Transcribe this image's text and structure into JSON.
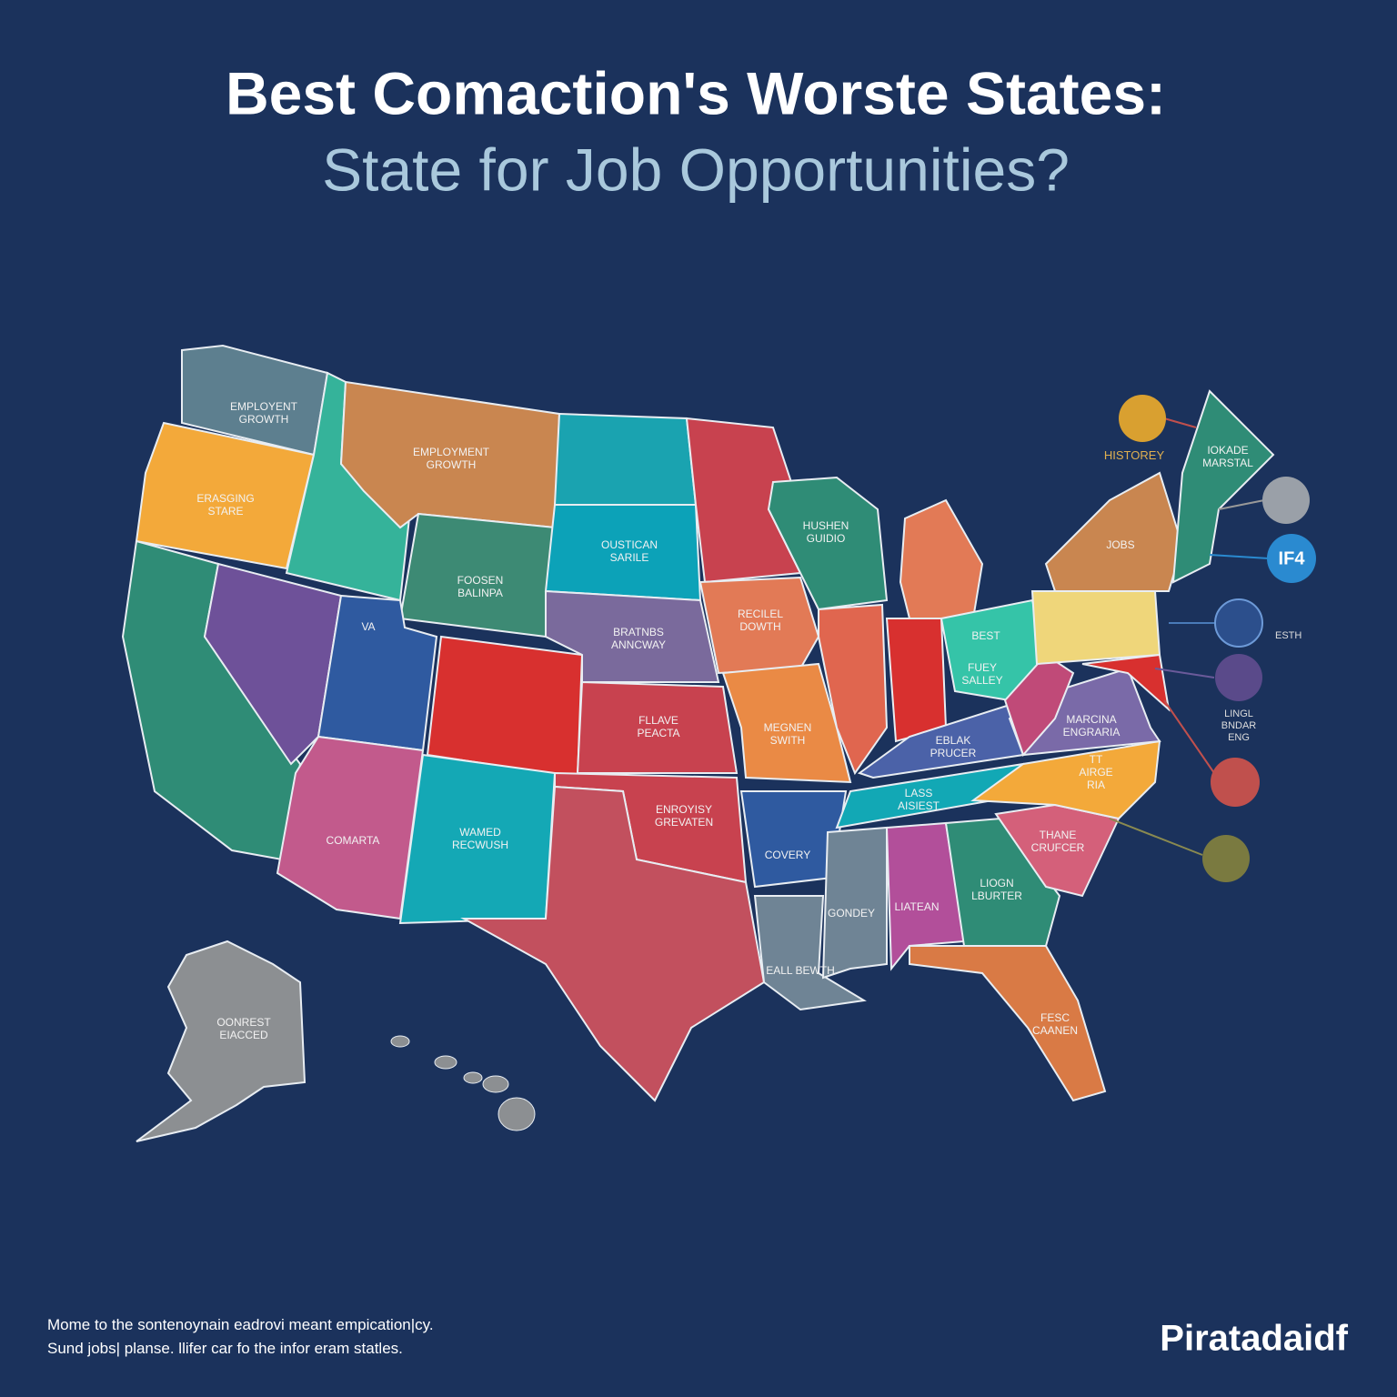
{
  "header": {
    "title": "Best Comaction's Worste States:",
    "subtitle": "State for Job Opportunities?"
  },
  "regions": [
    {
      "label_lines": [
        "EMPLOYENT",
        "GROWTH"
      ]
    },
    {
      "label_lines": [
        "ERASGING",
        "STARE"
      ]
    },
    {
      "label_lines": []
    },
    {
      "label_lines": []
    },
    {
      "label_lines": []
    },
    {
      "label_lines": [
        "EMPLOYMENT",
        "GROWTH"
      ]
    },
    {
      "label_lines": [
        "FOOSEN",
        "BALINPA"
      ]
    },
    {
      "label_lines": [
        "VA"
      ]
    },
    {
      "label_lines": []
    },
    {
      "label_lines": [
        "COMARTA"
      ]
    },
    {
      "label_lines": [
        "WAMED",
        "RECWUSH"
      ]
    },
    {
      "label_lines": []
    },
    {
      "label_lines": [
        "OUSTICAN",
        "SARILE"
      ]
    },
    {
      "label_lines": [
        "BRATNBS",
        "ANNCWAY"
      ]
    },
    {
      "label_lines": [
        "FLLAVE",
        "PEACTA"
      ]
    },
    {
      "label_lines": [
        "ENROYISY",
        "GREVATEN"
      ]
    },
    {
      "label_lines": []
    },
    {
      "label_lines": []
    },
    {
      "label_lines": [
        "RECILEL",
        "DOWTH"
      ]
    },
    {
      "label_lines": [
        "MEGNEN",
        "SWITH"
      ]
    },
    {
      "label_lines": [
        "COVERY"
      ]
    },
    {
      "label_lines": [
        "EALL BEWTH"
      ]
    },
    {
      "label_lines": [
        "HUSHEN",
        "GUIDIO"
      ]
    },
    {
      "label_lines": []
    },
    {
      "label_lines": []
    },
    {
      "label_lines": []
    },
    {
      "label_lines": [
        "BEST"
      ]
    },
    {
      "label_lines": [
        "EBLAK",
        "PRUCER"
      ]
    },
    {
      "label_lines": [
        "LASS",
        "AISIEST"
      ]
    },
    {
      "label_lines": [
        "GONDEY"
      ]
    },
    {
      "label_lines": [
        "LIATEAN"
      ]
    },
    {
      "label_lines": [
        "LIOGN",
        "LBURTER"
      ]
    },
    {
      "label_lines": [
        "FESC",
        "CAANEN"
      ]
    },
    {
      "label_lines": [
        "THANE",
        "CRUFCER"
      ]
    },
    {
      "label_lines": [
        "TT",
        "AIRGE",
        "RIA"
      ]
    },
    {
      "label_lines": [
        "MARCINA",
        "ENGRARIA"
      ]
    },
    {
      "label_lines": [
        "FUEY",
        "SALLEY"
      ]
    },
    {
      "label_lines": []
    },
    {
      "label_lines": [
        "JOBS"
      ]
    },
    {
      "label_lines": [
        "IOKADE",
        "MARSTAL"
      ]
    },
    {
      "label_lines": []
    },
    {
      "label_lines": [
        "OONREST",
        "EIACCED"
      ]
    }
  ],
  "callouts": [
    "HISTOREY",
    "IF4",
    "ESTH",
    "LINGL",
    "BNDAR",
    "ENG"
  ],
  "footer": {
    "lines": [
      "Mome to  the  sontenoynain eadrovi meant  empication|cy.",
      "Sund jobs| planse. llifer car fo the  infor eram statles."
    ]
  },
  "brand": "Piratadaidf"
}
